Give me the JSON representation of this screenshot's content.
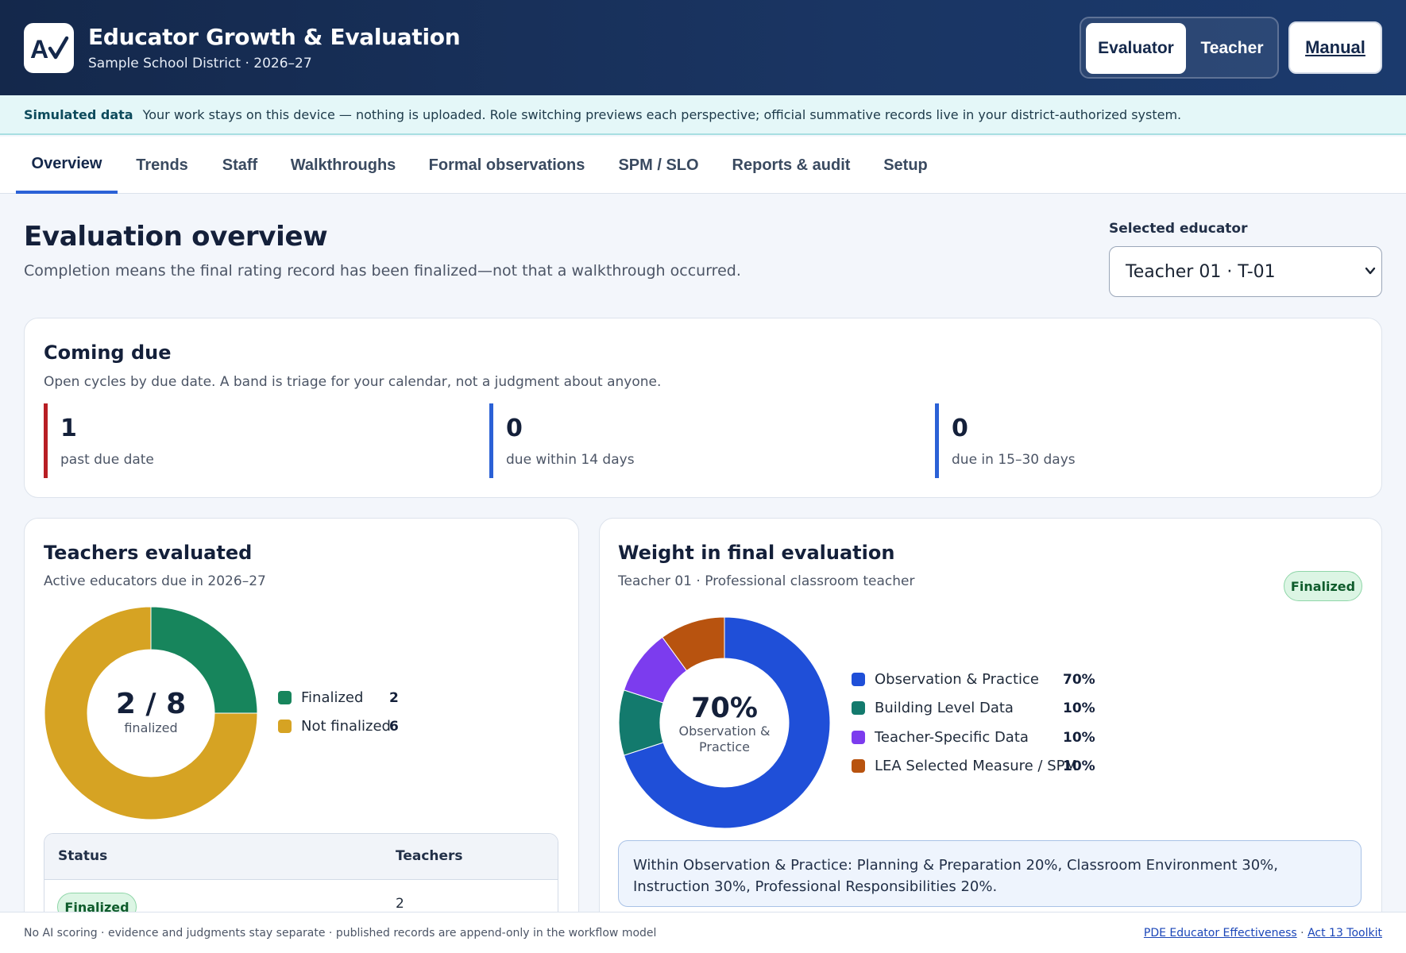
{
  "header": {
    "title": "Educator Growth & Evaluation",
    "subtitle": "Sample School District · 2026–27",
    "logo_icon": "checkmark-logo-icon",
    "roles": [
      "Evaluator",
      "Teacher"
    ],
    "active_role": "Evaluator",
    "manual_label": "Manual"
  },
  "banner": {
    "strong": "Simulated data",
    "text": "Your work stays on this device — nothing is uploaded. Role switching previews each perspective; official summative records live in your district-authorized system."
  },
  "tabs": [
    {
      "label": "Overview",
      "active": true
    },
    {
      "label": "Trends"
    },
    {
      "label": "Staff"
    },
    {
      "label": "Walkthroughs"
    },
    {
      "label": "Formal observations"
    },
    {
      "label": "SPM / SLO"
    },
    {
      "label": "Reports & audit"
    },
    {
      "label": "Setup"
    }
  ],
  "overview": {
    "title": "Evaluation overview",
    "description": "Completion means the final rating record has been finalized—not that a walkthrough occurred.",
    "selected_educator_label": "Selected educator",
    "selected_educator_value": "Teacher 01 · T-01"
  },
  "coming_due": {
    "title": "Coming due",
    "subtitle": "Open cycles by due date. A band is triage for your calendar, not a judgment about anyone.",
    "items": [
      {
        "value": "1",
        "label": "past due date",
        "color": "#b81e24"
      },
      {
        "value": "0",
        "label": "due within 14 days",
        "color": "#2b61d6"
      },
      {
        "value": "0",
        "label": "due in 15–30 days",
        "color": "#2b61d6"
      }
    ]
  },
  "teachers_evaluated": {
    "title": "Teachers evaluated",
    "subtitle": "Active educators due in 2026–27",
    "center_big": "2 / 8",
    "center_small": "finalized",
    "table": {
      "headers": [
        "Status",
        "Teachers"
      ],
      "rows": [
        {
          "status": "Finalized",
          "teachers": "2"
        }
      ]
    }
  },
  "weight": {
    "title": "Weight in final evaluation",
    "subtitle": "Teacher 01 · Professional classroom teacher",
    "badge": "Finalized",
    "center_big": "70%",
    "center_small_1": "Observation &",
    "center_small_2": "Practice",
    "note": "Within Observation & Practice: Planning & Preparation 20%, Classroom Environment 30%, Instruction 30%, Professional Responsibilities 20%."
  },
  "chart_data": [
    {
      "type": "pie",
      "variant": "donut",
      "categories": [
        "Finalized",
        "Not finalized"
      ],
      "values": [
        2,
        6
      ],
      "colors": [
        "#17855c",
        "#d6a323"
      ]
    },
    {
      "type": "pie",
      "variant": "donut",
      "categories": [
        "Observation & Practice",
        "Building Level Data",
        "Teacher-Specific Data",
        "LEA Selected Measure / SPM"
      ],
      "values": [
        70,
        10,
        10,
        10
      ],
      "value_labels": [
        "70%",
        "10%",
        "10%",
        "10%"
      ],
      "colors": [
        "#1f4fd8",
        "#137a6d",
        "#7c3cee",
        "#b8530f"
      ]
    }
  ],
  "footer": {
    "left": "No AI scoring · evidence and judgments stay separate · published records are append-only in the workflow model",
    "link1": "PDE Educator Effectiveness",
    "sep": " · ",
    "link2": "Act 13 Toolkit"
  }
}
